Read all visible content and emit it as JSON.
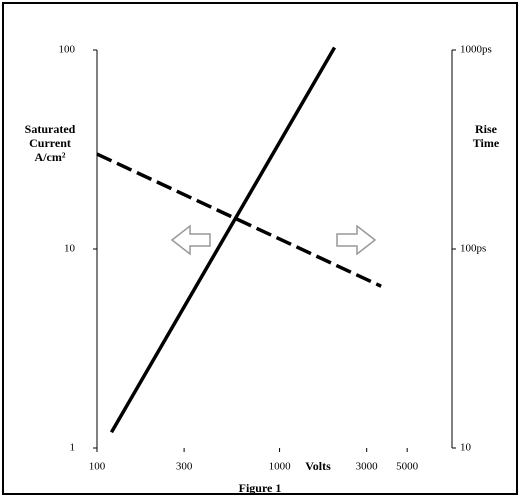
{
  "chart_data": {
    "type": "line",
    "caption": "Figure 1",
    "xlabel": "Volts",
    "ylabel": "Saturated Current A/cm²",
    "y2label": "Rise Time",
    "xscale": "log",
    "yscale": "log",
    "y2scale": "log",
    "xlim": [
      100,
      8800
    ],
    "xticks": [
      100,
      300,
      1000,
      3000,
      5000
    ],
    "ylim": [
      1,
      100
    ],
    "yticks": [
      1,
      10,
      100
    ],
    "y2lim": [
      10,
      1000
    ],
    "y2ticks": [
      {
        "value": 10,
        "label": "10"
      },
      {
        "value": 100,
        "label": "100ps"
      },
      {
        "value": 1000,
        "label": "1000ps"
      }
    ],
    "series": [
      {
        "color": "#000000",
        "dash": false,
        "x": [
          120,
          2000
        ],
        "values": [
          1.2,
          103
        ]
      },
      {
        "color": "#000000",
        "dash": true,
        "axis": "y2",
        "x": [
          100,
          3600
        ],
        "values": [
          300,
          65
        ]
      }
    ]
  }
}
